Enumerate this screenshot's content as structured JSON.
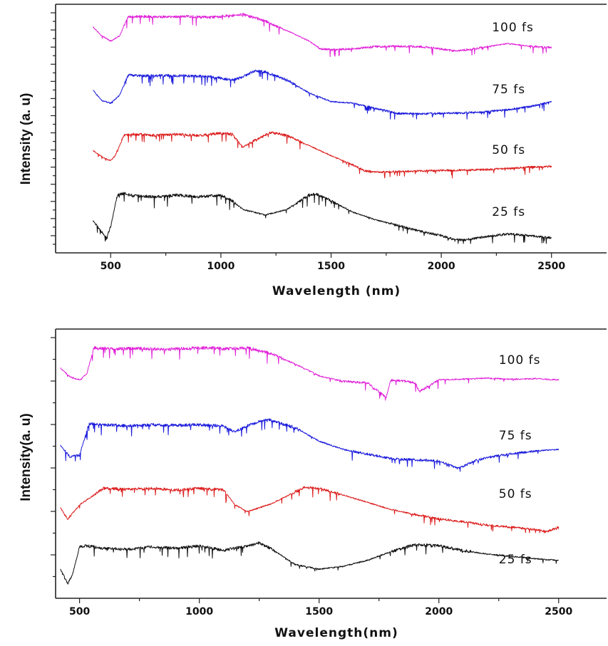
{
  "chart_data": [
    {
      "type": "line",
      "xlabel": "Wavelength (nm)",
      "ylabel": "Intensity (a. u)",
      "xlim": [
        250,
        2750
      ],
      "xticks": [
        500,
        1000,
        1500,
        2000,
        2500
      ],
      "y_tick_labels": false,
      "grid": false,
      "series": [
        {
          "name": "100 fs",
          "color": "#e020d8",
          "x": [
            420,
            460,
            500,
            540,
            580,
            650,
            750,
            850,
            950,
            1050,
            1100,
            1200,
            1300,
            1400,
            1450,
            1500,
            1600,
            1700,
            1800,
            1900,
            2000,
            2050,
            2100,
            2200,
            2300,
            2400,
            2500
          ],
          "y": [
            0.72,
            0.55,
            0.45,
            0.55,
            0.92,
            0.93,
            0.92,
            0.93,
            0.91,
            0.95,
            0.97,
            0.84,
            0.65,
            0.45,
            0.3,
            0.28,
            0.3,
            0.34,
            0.35,
            0.34,
            0.3,
            0.26,
            0.27,
            0.33,
            0.4,
            0.35,
            0.32
          ]
        },
        {
          "name": "75 fs",
          "color": "#1a1adc",
          "x": [
            420,
            460,
            500,
            540,
            580,
            650,
            750,
            850,
            950,
            1050,
            1100,
            1150,
            1200,
            1300,
            1400,
            1500,
            1600,
            1700,
            1800,
            1900,
            2000,
            2100,
            2200,
            2300,
            2400,
            2500
          ],
          "y": [
            0.6,
            0.4,
            0.35,
            0.5,
            0.9,
            0.88,
            0.89,
            0.88,
            0.87,
            0.8,
            0.86,
            0.98,
            0.96,
            0.8,
            0.55,
            0.38,
            0.35,
            0.25,
            0.15,
            0.14,
            0.15,
            0.16,
            0.18,
            0.22,
            0.28,
            0.38
          ]
        },
        {
          "name": "50 fs",
          "color": "#dc1c1c",
          "x": [
            420,
            470,
            500,
            520,
            560,
            600,
            700,
            800,
            900,
            1000,
            1050,
            1100,
            1150,
            1230,
            1300,
            1400,
            1500,
            1600,
            1650,
            1700,
            1800,
            1900,
            2000,
            2100,
            2200,
            2300,
            2400,
            2500
          ],
          "y": [
            0.55,
            0.4,
            0.35,
            0.45,
            0.85,
            0.88,
            0.86,
            0.88,
            0.85,
            0.9,
            0.88,
            0.62,
            0.75,
            0.92,
            0.85,
            0.65,
            0.45,
            0.26,
            0.15,
            0.12,
            0.13,
            0.14,
            0.15,
            0.16,
            0.17,
            0.19,
            0.22,
            0.23
          ]
        },
        {
          "name": "25 fs",
          "color": "#111111",
          "x": [
            420,
            460,
            480,
            500,
            530,
            560,
            600,
            700,
            800,
            900,
            1000,
            1050,
            1100,
            1200,
            1300,
            1400,
            1430,
            1500,
            1600,
            1700,
            1800,
            1900,
            2000,
            2050,
            2100,
            2200,
            2300,
            2400,
            2500
          ],
          "y": [
            0.4,
            0.2,
            0.1,
            0.3,
            0.85,
            0.88,
            0.84,
            0.82,
            0.85,
            0.82,
            0.85,
            0.75,
            0.6,
            0.5,
            0.6,
            0.85,
            0.88,
            0.75,
            0.55,
            0.42,
            0.32,
            0.22,
            0.14,
            0.08,
            0.06,
            0.12,
            0.17,
            0.14,
            0.1
          ]
        }
      ],
      "series_labels_at_x": 2230
    },
    {
      "type": "line",
      "xlabel": "Wavelength(nm)",
      "ylabel": "Intensity(a. u)",
      "xlim": [
        400,
        2700
      ],
      "xticks": [
        500,
        1000,
        1500,
        2000,
        2500
      ],
      "y_tick_labels": false,
      "grid": false,
      "series": [
        {
          "name": "100 fs",
          "color": "#e020d8",
          "x": [
            420,
            460,
            500,
            530,
            560,
            650,
            750,
            850,
            950,
            1050,
            1100,
            1200,
            1300,
            1400,
            1500,
            1600,
            1700,
            1780,
            1800,
            1850,
            1900,
            1920,
            2000,
            2100,
            2200,
            2300,
            2400,
            2500
          ],
          "y": [
            0.55,
            0.4,
            0.35,
            0.45,
            0.9,
            0.88,
            0.89,
            0.87,
            0.89,
            0.9,
            0.88,
            0.9,
            0.8,
            0.62,
            0.42,
            0.32,
            0.3,
            0.05,
            0.35,
            0.33,
            0.3,
            0.15,
            0.35,
            0.36,
            0.38,
            0.36,
            0.37,
            0.35
          ]
        },
        {
          "name": "75 fs",
          "color": "#1a1adc",
          "x": [
            420,
            460,
            500,
            540,
            600,
            700,
            800,
            900,
            1000,
            1100,
            1150,
            1200,
            1280,
            1400,
            1500,
            1600,
            1700,
            1800,
            1900,
            2000,
            2080,
            2150,
            2200,
            2300,
            2400,
            2500
          ],
          "y": [
            0.45,
            0.25,
            0.28,
            0.82,
            0.8,
            0.78,
            0.8,
            0.79,
            0.8,
            0.78,
            0.68,
            0.78,
            0.9,
            0.75,
            0.52,
            0.38,
            0.3,
            0.22,
            0.2,
            0.18,
            0.05,
            0.18,
            0.24,
            0.3,
            0.35,
            0.38
          ]
        },
        {
          "name": "50 fs",
          "color": "#dc1c1c",
          "x": [
            420,
            450,
            500,
            540,
            600,
            700,
            800,
            900,
            1000,
            1100,
            1150,
            1200,
            1300,
            1440,
            1500,
            1600,
            1700,
            1800,
            1900,
            2000,
            2100,
            2200,
            2300,
            2400,
            2450,
            2500
          ],
          "y": [
            0.45,
            0.25,
            0.5,
            0.62,
            0.8,
            0.78,
            0.8,
            0.77,
            0.8,
            0.77,
            0.5,
            0.38,
            0.52,
            0.82,
            0.8,
            0.68,
            0.55,
            0.42,
            0.33,
            0.25,
            0.2,
            0.14,
            0.1,
            0.06,
            0.02,
            0.1
          ]
        },
        {
          "name": "25 fs",
          "color": "#111111",
          "x": [
            420,
            450,
            470,
            500,
            530,
            600,
            700,
            800,
            900,
            1000,
            1100,
            1200,
            1250,
            1300,
            1400,
            1500,
            1600,
            1700,
            1800,
            1900,
            2000,
            2100,
            2200,
            2300,
            2400,
            2500
          ],
          "y": [
            0.4,
            0.15,
            0.3,
            0.78,
            0.8,
            0.76,
            0.74,
            0.78,
            0.76,
            0.8,
            0.72,
            0.8,
            0.85,
            0.75,
            0.48,
            0.4,
            0.45,
            0.55,
            0.7,
            0.82,
            0.8,
            0.72,
            0.66,
            0.62,
            0.58,
            0.55
          ]
        }
      ],
      "series_labels_at_x": 2250
    }
  ]
}
